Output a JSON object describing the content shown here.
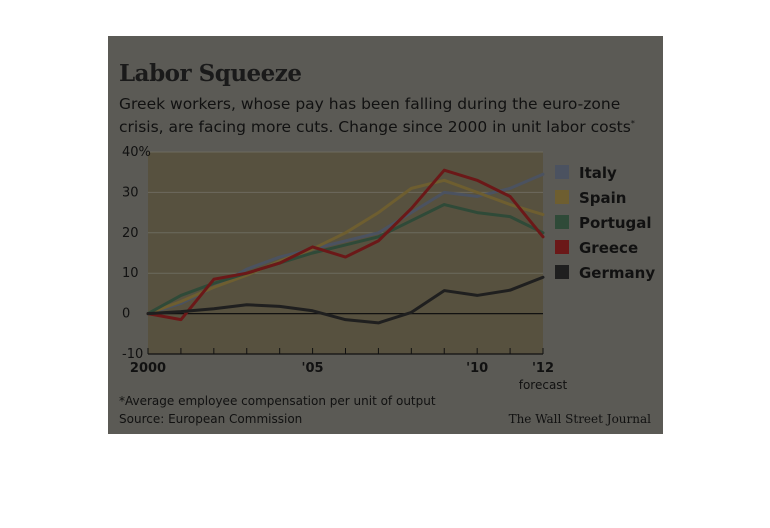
{
  "header": {
    "title": "Labor Squeeze",
    "subtitle": "Greek workers, whose pay has been falling during the euro-zone crisis, are facing more cuts. Change since 2000 in unit labor costs",
    "subtitle_marker": "*"
  },
  "chart_data": {
    "type": "line",
    "x": [
      2000,
      2001,
      2002,
      2003,
      2004,
      2005,
      2006,
      2007,
      2008,
      2009,
      2010,
      2011,
      2012
    ],
    "x_tick_labels": [
      {
        "x": 2000,
        "label": "2000"
      },
      {
        "x": 2005,
        "label": "'05"
      },
      {
        "x": 2010,
        "label": "'10"
      },
      {
        "x": 2012,
        "label": "'12"
      }
    ],
    "x_note": {
      "x": 2012,
      "label": "forecast"
    },
    "y_tick_labels": [
      {
        "y": 40,
        "label": "40%"
      },
      {
        "y": 30,
        "label": "30"
      },
      {
        "y": 20,
        "label": "20"
      },
      {
        "y": 10,
        "label": "10"
      },
      {
        "y": 0,
        "label": "0"
      },
      {
        "y": -10,
        "label": "-10"
      }
    ],
    "ylim": [
      -10,
      40
    ],
    "xlim": [
      2000,
      2012
    ],
    "grid": true,
    "legend_position": "right",
    "series": [
      {
        "name": "Italy",
        "color": "#4b5260",
        "values": [
          0,
          2.5,
          6.5,
          11,
          14,
          16,
          18,
          20,
          25,
          30,
          29,
          31,
          34.5
        ]
      },
      {
        "name": "Spain",
        "color": "#6e5e30",
        "values": [
          0,
          3,
          6.5,
          9.5,
          13,
          16,
          20,
          25,
          31,
          33,
          30,
          27,
          24.5
        ]
      },
      {
        "name": "Portugal",
        "color": "#2f4a38",
        "values": [
          0,
          4.5,
          7.5,
          10,
          12.5,
          15,
          17,
          19,
          23,
          27,
          25,
          24,
          20
        ]
      },
      {
        "name": "Greece",
        "color": "#6b1818",
        "values": [
          0,
          -1.5,
          8.5,
          10,
          12.5,
          16.5,
          14,
          18,
          26,
          35.5,
          33,
          29,
          19
        ]
      },
      {
        "name": "Germany",
        "color": "#1f1f1f",
        "values": [
          0,
          0.5,
          1.2,
          2.2,
          1.8,
          0.7,
          -1.5,
          -2.3,
          0.3,
          5.7,
          4.5,
          5.8,
          9
        ]
      }
    ],
    "footnote": "*Average employee compensation per unit of output",
    "source": "Source: European Commission",
    "credit": "The Wall Street Journal"
  }
}
